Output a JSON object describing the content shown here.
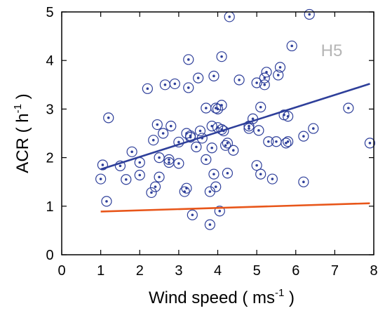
{
  "chart_data": {
    "type": "scatter",
    "panel_label": "H5",
    "xlabel": {
      "prefix": "Wind speed ( ms",
      "sup": "-1",
      "suffix": " )"
    },
    "ylabel": {
      "prefix": "ACR ( h",
      "sup": "-1",
      "suffix": " )"
    },
    "xlim": [
      0,
      8
    ],
    "ylim": [
      0,
      5
    ],
    "xticks": [
      "0",
      "1",
      "2",
      "3",
      "4",
      "5",
      "6",
      "7",
      "8"
    ],
    "yticks": [
      "0",
      "1",
      "2",
      "3",
      "4",
      "5"
    ],
    "grid": false,
    "marker_color": "#2e3f9a",
    "series": [
      {
        "type": "points",
        "points": [
          [
            1.05,
            1.85
          ],
          [
            1.0,
            1.56
          ],
          [
            1.15,
            1.1
          ],
          [
            1.2,
            2.82
          ],
          [
            1.5,
            1.83
          ],
          [
            1.65,
            1.55
          ],
          [
            1.8,
            2.12
          ],
          [
            2.0,
            1.64
          ],
          [
            2.0,
            1.9
          ],
          [
            2.2,
            3.42
          ],
          [
            2.3,
            1.28
          ],
          [
            2.35,
            2.36
          ],
          [
            2.4,
            1.4
          ],
          [
            2.45,
            2.68
          ],
          [
            2.5,
            1.6
          ],
          [
            2.5,
            2.0
          ],
          [
            2.6,
            2.5
          ],
          [
            2.65,
            3.5
          ],
          [
            2.75,
            1.96
          ],
          [
            2.75,
            1.9
          ],
          [
            2.8,
            2.65
          ],
          [
            2.9,
            3.52
          ],
          [
            3.0,
            2.32
          ],
          [
            3.0,
            1.88
          ],
          [
            3.15,
            1.3
          ],
          [
            3.2,
            1.37
          ],
          [
            3.2,
            2.5
          ],
          [
            3.25,
            3.44
          ],
          [
            3.25,
            4.02
          ],
          [
            3.3,
            2.42
          ],
          [
            3.3,
            2.45
          ],
          [
            3.35,
            0.82
          ],
          [
            3.45,
            2.22
          ],
          [
            3.5,
            3.64
          ],
          [
            3.55,
            2.55
          ],
          [
            3.6,
            2.4
          ],
          [
            3.7,
            1.96
          ],
          [
            3.7,
            3.02
          ],
          [
            3.8,
            0.62
          ],
          [
            3.8,
            1.3
          ],
          [
            3.85,
            2.2
          ],
          [
            3.85,
            2.65
          ],
          [
            3.9,
            1.66
          ],
          [
            3.9,
            3.68
          ],
          [
            3.95,
            1.4
          ],
          [
            3.95,
            3.02
          ],
          [
            4.0,
            2.62
          ],
          [
            4.0,
            3.0
          ],
          [
            4.05,
            0.9
          ],
          [
            4.1,
            2.58
          ],
          [
            4.1,
            3.08
          ],
          [
            4.1,
            4.08
          ],
          [
            4.15,
            2.55
          ],
          [
            4.2,
            2.25
          ],
          [
            4.25,
            1.68
          ],
          [
            4.25,
            2.3
          ],
          [
            4.3,
            4.9
          ],
          [
            4.4,
            2.15
          ],
          [
            4.55,
            3.6
          ],
          [
            4.8,
            2.65
          ],
          [
            4.8,
            2.6
          ],
          [
            4.9,
            2.8
          ],
          [
            5.0,
            1.84
          ],
          [
            5.0,
            3.54
          ],
          [
            5.05,
            2.56
          ],
          [
            5.1,
            3.04
          ],
          [
            5.1,
            1.66
          ],
          [
            5.2,
            3.5
          ],
          [
            5.2,
            3.64
          ],
          [
            5.25,
            3.76
          ],
          [
            5.3,
            2.33
          ],
          [
            5.4,
            1.56
          ],
          [
            5.5,
            2.33
          ],
          [
            5.55,
            3.7
          ],
          [
            5.6,
            3.86
          ],
          [
            5.7,
            2.88
          ],
          [
            5.75,
            2.3
          ],
          [
            5.8,
            2.33
          ],
          [
            5.8,
            2.85
          ],
          [
            5.9,
            4.3
          ],
          [
            6.2,
            1.5
          ],
          [
            6.2,
            2.44
          ],
          [
            6.35,
            4.95
          ],
          [
            6.45,
            2.6
          ],
          [
            7.35,
            3.02
          ],
          [
            7.9,
            2.3
          ]
        ]
      },
      {
        "type": "fit-line",
        "color": "#2e3f9a",
        "points": [
          [
            1.0,
            1.76
          ],
          [
            7.9,
            3.52
          ]
        ]
      },
      {
        "type": "reference-line",
        "color": "#e8561a",
        "points": [
          [
            1.0,
            0.89
          ],
          [
            7.9,
            1.06
          ]
        ]
      }
    ]
  }
}
